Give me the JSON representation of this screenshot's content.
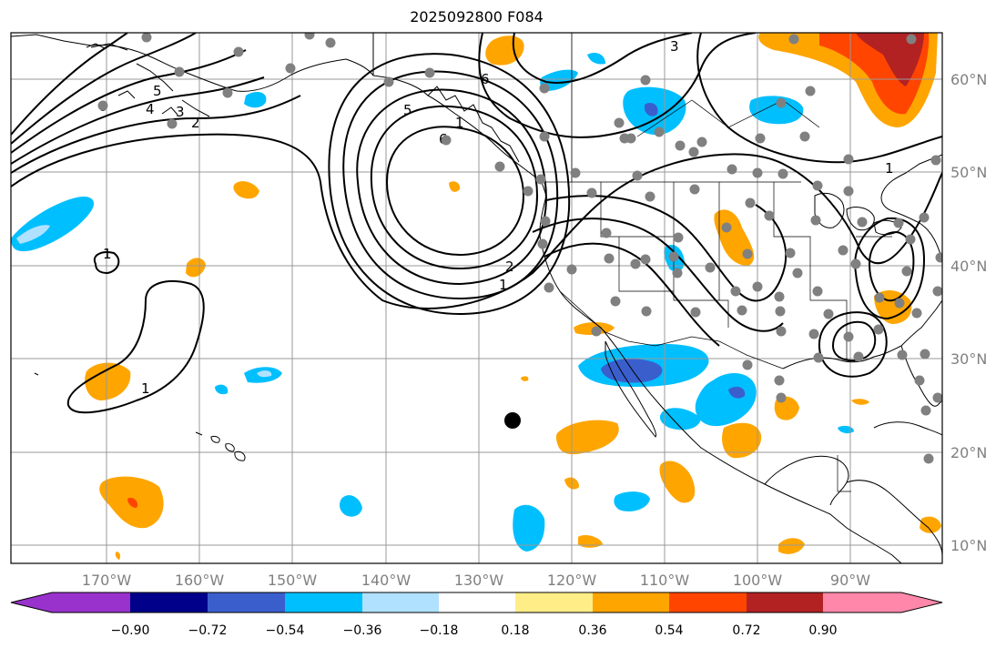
{
  "title": "2025092800 F084",
  "lon_ticks": [
    "170°W",
    "160°W",
    "150°W",
    "140°W",
    "130°W",
    "120°W",
    "110°W",
    "100°W",
    "90°W"
  ],
  "lat_ticks": [
    "10°N",
    "20°N",
    "30°N",
    "40°N",
    "50°N",
    "60°N"
  ],
  "colorbar": {
    "colors": [
      "#9932cc",
      "#00008b",
      "#3a5fcd",
      "#00bfff",
      "#b0e2ff",
      "#ffffff",
      "#ffee88",
      "#ffa500",
      "#ff4500",
      "#b22222",
      "#ff88aa"
    ],
    "labels": [
      "−0.90",
      "−0.72",
      "−0.54",
      "−0.36",
      "−0.18",
      "0.18",
      "0.36",
      "0.54",
      "0.72",
      "0.90"
    ]
  },
  "contour_labels": [
    "1",
    "2",
    "3",
    "4",
    "5",
    "6",
    "6",
    "5",
    "2",
    "1",
    "1",
    "1",
    "3",
    "6",
    "1"
  ],
  "colors": {
    "grid": "#999999",
    "coast": "#000000",
    "station": "#808080",
    "contour": "#000000"
  }
}
